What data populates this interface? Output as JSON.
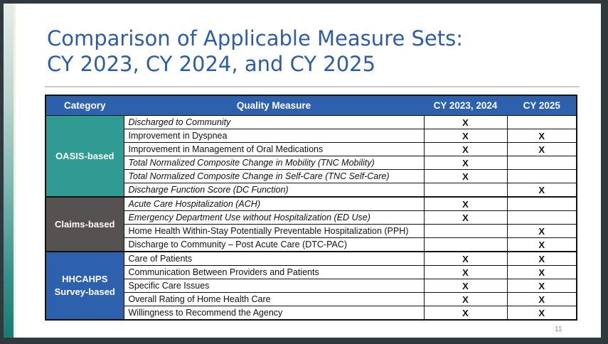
{
  "slide": {
    "title_line1": "Comparison of Applicable Measure Sets:",
    "title_line2": "CY 2023, CY 2024, and CY 2025",
    "page_number": "11"
  },
  "colors": {
    "title_blue": "#2d5ca8",
    "table_header_blue": "#2d61ae",
    "oasis_teal": "#2f9b92",
    "claims_gray": "#565251",
    "hhcahps_blue": "#2d61ae",
    "frame_dark": "#30393d",
    "accent_strip_teal": "#1d7a73"
  },
  "table": {
    "headers": [
      "Category",
      "Quality Measure",
      "CY 2023, 2024",
      "CY 2025"
    ],
    "categories": [
      {
        "label": "OASIS-based",
        "rowspan": 6
      },
      {
        "label": "Claims-based",
        "rowspan": 4
      },
      {
        "label": "HHCAHPS Survey-based",
        "rowspan": 5
      }
    ],
    "rows": [
      {
        "measure": "Discharged to Community",
        "cy2023_2024": "X",
        "cy2025": ""
      },
      {
        "measure": "Improvement in Dyspnea",
        "cy2023_2024": "X",
        "cy2025": "X"
      },
      {
        "measure": "Improvement in Management of Oral Medications",
        "cy2023_2024": "X",
        "cy2025": "X"
      },
      {
        "measure": "Total Normalized Composite Change in Mobility (TNC Mobility)",
        "cy2023_2024": "X",
        "cy2025": ""
      },
      {
        "measure": "Total Normalized Composite Change in Self-Care (TNC Self-Care)",
        "cy2023_2024": "X",
        "cy2025": ""
      },
      {
        "measure": "Discharge Function Score (DC Function)",
        "cy2023_2024": "",
        "cy2025": "X"
      },
      {
        "measure": "Acute Care Hospitalization (ACH)",
        "cy2023_2024": "X",
        "cy2025": ""
      },
      {
        "measure": "Emergency Department Use without Hospitalization (ED Use)",
        "cy2023_2024": "X",
        "cy2025": ""
      },
      {
        "measure": "Home Health Within-Stay Potentially Preventable Hospitalization (PPH)",
        "cy2023_2024": "",
        "cy2025": "X"
      },
      {
        "measure": "Discharge to Community – Post Acute Care (DTC-PAC)",
        "cy2023_2024": "",
        "cy2025": "X"
      },
      {
        "measure": "Care of Patients",
        "cy2023_2024": "X",
        "cy2025": "X"
      },
      {
        "measure": "Communication Between Providers and Patients",
        "cy2023_2024": "X",
        "cy2025": "X"
      },
      {
        "measure": "Specific Care Issues",
        "cy2023_2024": "X",
        "cy2025": "X"
      },
      {
        "measure": "Overall Rating of Home Health Care",
        "cy2023_2024": "X",
        "cy2025": "X"
      },
      {
        "measure": "Willingness to Recommend the Agency",
        "cy2023_2024": "X",
        "cy2025": "X"
      }
    ]
  }
}
